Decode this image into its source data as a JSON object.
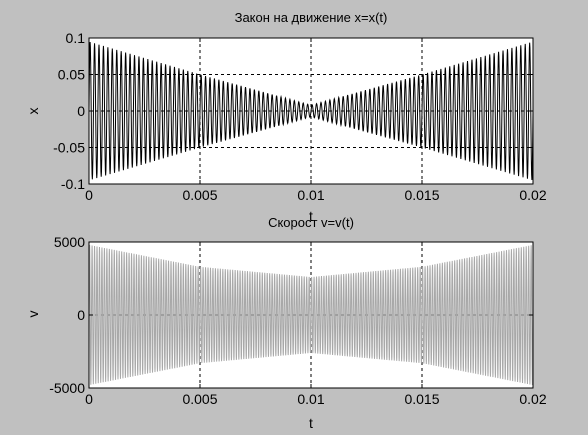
{
  "colors": {
    "figure_bg": "#c0c0c0",
    "axes_bg": "#ffffff",
    "grid": "#000000"
  },
  "chart_data": [
    {
      "type": "line",
      "title": "Закон на движение x=x(t)",
      "xlabel": "t",
      "ylabel": "x",
      "xlim": [
        0,
        0.02
      ],
      "ylim": [
        -0.1,
        0.1
      ],
      "xticks": [
        0,
        0.005,
        0.01,
        0.015,
        0.02
      ],
      "xtick_labels": [
        "0",
        "0.005",
        "0.01",
        "0.015",
        "0.02"
      ],
      "yticks": [
        -0.1,
        -0.05,
        0,
        0.05,
        0.1
      ],
      "ytick_labels": [
        "-0.1",
        "-0.05",
        "0",
        "0.05",
        "0.1"
      ],
      "grid": true,
      "series": [
        {
          "color": "#000000",
          "signal": "amplitude-modulated oscillation, ~100 cycles over the window",
          "amplitude_envelope": {
            "t": [
              0,
              0.005,
              0.01,
              0.015,
              0.02
            ],
            "amp": [
              0.095,
              0.05,
              0.008,
              0.05,
              0.095
            ]
          },
          "cycles": 100
        }
      ]
    },
    {
      "type": "line",
      "title": "Скорост v=v(t)",
      "xlabel": "t",
      "ylabel": "v",
      "xlim": [
        0,
        0.02
      ],
      "ylim": [
        -5000,
        5000
      ],
      "xticks": [
        0,
        0.005,
        0.01,
        0.015,
        0.02
      ],
      "xtick_labels": [
        "0",
        "0.005",
        "0.01",
        "0.015",
        "0.02"
      ],
      "yticks": [
        -5000,
        0,
        5000
      ],
      "ytick_labels": [
        "-5000",
        "0",
        "5000"
      ],
      "grid": true,
      "series": [
        {
          "color": "#a8a8a8",
          "signal": "high-frequency oscillation with slowly varying envelope",
          "amplitude_envelope": {
            "t": [
              0,
              0.005,
              0.01,
              0.015,
              0.02
            ],
            "amp": [
              4800,
              3300,
              2600,
              3300,
              4800
            ]
          },
          "cycles": 180
        }
      ]
    }
  ]
}
